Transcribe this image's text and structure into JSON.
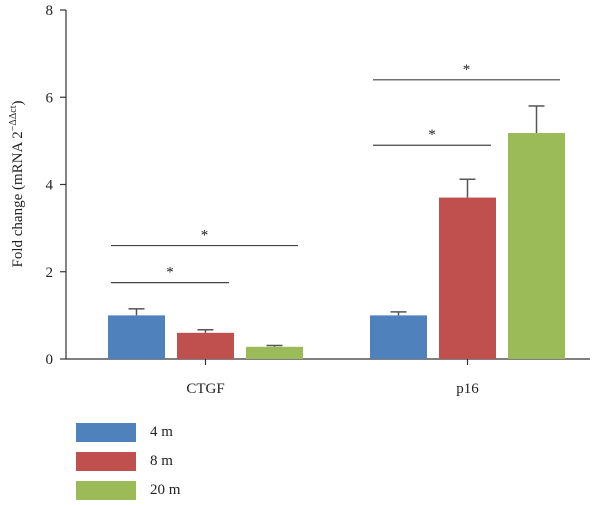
{
  "chart_data": {
    "type": "bar",
    "categories": [
      "CTGF",
      "p16"
    ],
    "series": [
      {
        "name": "4 m",
        "values": [
          1.0,
          1.0
        ],
        "errors": [
          0.15,
          0.08
        ],
        "color": "#4f81bd"
      },
      {
        "name": "8 m",
        "values": [
          0.6,
          3.7
        ],
        "errors": [
          0.07,
          0.42
        ],
        "color": "#c0504d"
      },
      {
        "name": "20 m",
        "values": [
          0.28,
          5.18
        ],
        "errors": [
          0.03,
          0.62
        ],
        "color": "#9bbb59"
      }
    ],
    "ylabel_main": "Fold change (mRNA 2",
    "ylabel_sup": "−ΔΔct",
    "ylabel_end": ")",
    "ylim": [
      0,
      8
    ],
    "yticks": [
      "0",
      "2",
      "4",
      "6",
      "8"
    ],
    "significance": [
      {
        "category": "CTGF",
        "from_series": 0,
        "to_series": 1,
        "level": 1.75,
        "label": "*"
      },
      {
        "category": "CTGF",
        "from_series": 0,
        "to_series": 2,
        "level": 2.6,
        "label": "*"
      },
      {
        "category": "p16",
        "from_series": 0,
        "to_series": 1,
        "level": 4.9,
        "label": "*"
      },
      {
        "category": "p16",
        "from_series": 0,
        "to_series": 2,
        "level": 6.4,
        "label": "*"
      }
    ],
    "legend_position": "bottom-left"
  }
}
